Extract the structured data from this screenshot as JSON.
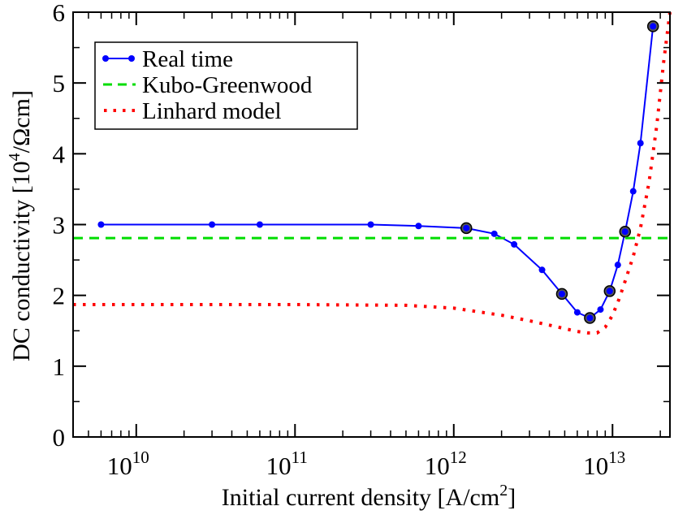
{
  "chart_data": {
    "type": "line",
    "xscale": "log",
    "xlabel": "Initial current density [A/cm",
    "xlabel_sup": "2",
    "xlabel_tail": "]",
    "ylabel": "DC conductivity [10",
    "ylabel_sup": "4",
    "ylabel_tail": "/Ωcm]",
    "xlim": [
      4000000000.0,
      23000000000000.0
    ],
    "ylim": [
      0,
      6
    ],
    "xticks": [
      {
        "value": 10000000000.0,
        "base": "10",
        "exp": "10"
      },
      {
        "value": 100000000000.0,
        "base": "10",
        "exp": "11"
      },
      {
        "value": 1000000000000.0,
        "base": "10",
        "exp": "12"
      },
      {
        "value": 10000000000000.0,
        "base": "10",
        "exp": "13"
      }
    ],
    "yticks": [
      "0",
      "1",
      "2",
      "3",
      "4",
      "5",
      "6"
    ],
    "legend_position": "top-left",
    "series": [
      {
        "name": "Real time",
        "style": "line-marker",
        "color": "#0000ff",
        "x": [
          6000000000.0,
          30000000000.0,
          60000000000.0,
          300000000000.0,
          600000000000.0,
          1200000000000.0,
          1800000000000.0,
          2400000000000.0,
          3600000000000.0,
          4800000000000.0,
          6000000000000.0,
          7200000000000.0,
          8400000000000.0,
          9600000000000.0,
          10800000000000.0,
          12000000000000.0,
          13500000000000.0,
          15000000000000.0,
          18000000000000.0
        ],
        "y": [
          3.0,
          3.0,
          3.0,
          3.0,
          2.98,
          2.95,
          2.87,
          2.72,
          2.36,
          2.02,
          1.76,
          1.68,
          1.8,
          2.06,
          2.43,
          2.9,
          3.47,
          4.15,
          5.8
        ],
        "circled": [
          false,
          false,
          false,
          false,
          false,
          true,
          false,
          false,
          false,
          true,
          false,
          true,
          false,
          true,
          false,
          true,
          false,
          false,
          true
        ]
      },
      {
        "name": "Kubo-Greenwood",
        "style": "dashed",
        "color": "#00dd00",
        "x": [
          4000000000.0,
          23000000000000.0
        ],
        "y": [
          2.81,
          2.81
        ]
      },
      {
        "name": "Linhard model",
        "style": "dotted",
        "color": "#ff0000",
        "x": [
          4000000000.0,
          10000000000.0,
          100000000000.0,
          500000000000.0,
          1000000000000.0,
          2000000000000.0,
          3000000000000.0,
          4000000000000.0,
          5000000000000.0,
          6000000000000.0,
          7000000000000.0,
          8000000000000.0,
          9000000000000.0,
          10000000000000.0,
          11000000000000.0,
          12000000000000.0,
          13500000000000.0,
          15000000000000.0,
          17000000000000.0,
          19000000000000.0,
          21000000000000.0,
          23000000000000.0
        ],
        "y": [
          1.87,
          1.87,
          1.87,
          1.86,
          1.82,
          1.72,
          1.64,
          1.58,
          1.53,
          1.49,
          1.47,
          1.47,
          1.55,
          1.72,
          1.95,
          2.2,
          2.55,
          2.95,
          3.6,
          4.4,
          5.3,
          6.0
        ]
      }
    ]
  }
}
